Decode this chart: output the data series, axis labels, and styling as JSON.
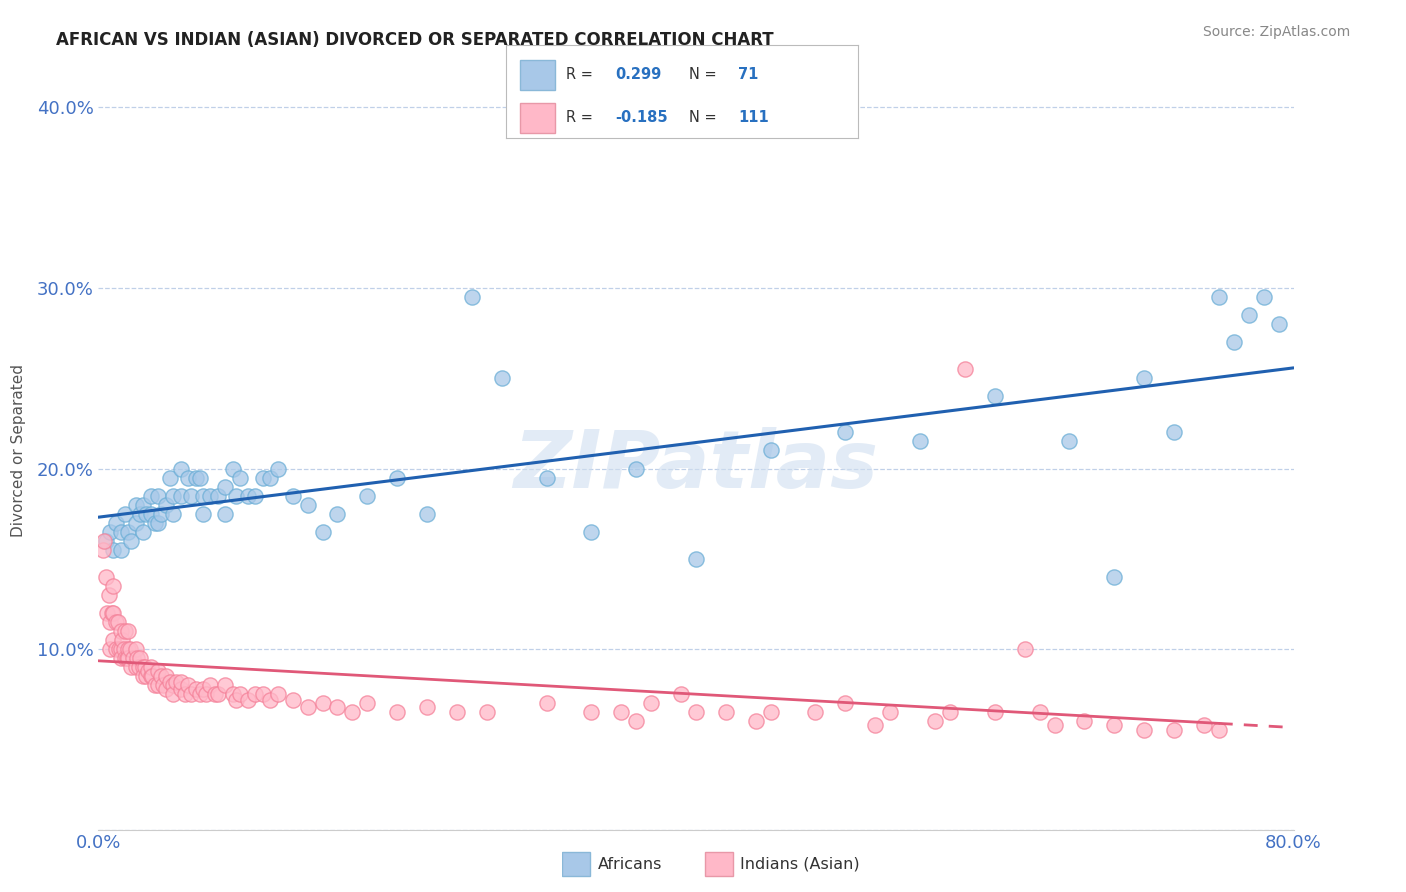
{
  "title": "AFRICAN VS INDIAN (ASIAN) DIVORCED OR SEPARATED CORRELATION CHART",
  "source": "Source: ZipAtlas.com",
  "ylabel": "Divorced or Separated",
  "xlim": [
    0.0,
    0.8
  ],
  "ylim": [
    0.0,
    0.42
  ],
  "xticks": [
    0.0,
    0.1,
    0.2,
    0.3,
    0.4,
    0.5,
    0.6,
    0.7,
    0.8
  ],
  "xticklabels": [
    "0.0%",
    "",
    "",
    "",
    "",
    "",
    "",
    "",
    "80.0%"
  ],
  "yticks": [
    0.0,
    0.1,
    0.2,
    0.3,
    0.4
  ],
  "yticklabels": [
    "",
    "10.0%",
    "20.0%",
    "30.0%",
    "40.0%"
  ],
  "african_R": 0.299,
  "african_N": 71,
  "indian_R": -0.185,
  "indian_N": 111,
  "african_color": "#a8c8e8",
  "african_edge_color": "#6baed6",
  "indian_color": "#ffb8c8",
  "indian_edge_color": "#f48098",
  "african_line_color": "#2060b0",
  "indian_line_color": "#e05878",
  "watermark": "ZIPatlas",
  "background_color": "#ffffff",
  "grid_color": "#c0d0e8",
  "axis_label_color": "#4472c4",
  "legend_border_color": "#c8c8c8",
  "african_legend_color": "#a8c8e8",
  "african_legend_edge": "#8ab8d8",
  "indian_legend_color": "#ffb8c8",
  "indian_legend_edge": "#e898a8",
  "african_x": [
    0.005,
    0.008,
    0.01,
    0.012,
    0.015,
    0.015,
    0.018,
    0.02,
    0.022,
    0.025,
    0.025,
    0.028,
    0.03,
    0.03,
    0.032,
    0.035,
    0.035,
    0.038,
    0.04,
    0.04,
    0.042,
    0.045,
    0.048,
    0.05,
    0.05,
    0.055,
    0.055,
    0.06,
    0.062,
    0.065,
    0.068,
    0.07,
    0.07,
    0.075,
    0.08,
    0.085,
    0.085,
    0.09,
    0.092,
    0.095,
    0.1,
    0.105,
    0.11,
    0.115,
    0.12,
    0.13,
    0.14,
    0.15,
    0.16,
    0.18,
    0.2,
    0.22,
    0.25,
    0.27,
    0.3,
    0.33,
    0.36,
    0.4,
    0.45,
    0.5,
    0.55,
    0.6,
    0.65,
    0.68,
    0.7,
    0.72,
    0.75,
    0.76,
    0.77,
    0.78,
    0.79
  ],
  "african_y": [
    0.16,
    0.165,
    0.155,
    0.17,
    0.165,
    0.155,
    0.175,
    0.165,
    0.16,
    0.17,
    0.18,
    0.175,
    0.18,
    0.165,
    0.175,
    0.185,
    0.175,
    0.17,
    0.185,
    0.17,
    0.175,
    0.18,
    0.195,
    0.185,
    0.175,
    0.2,
    0.185,
    0.195,
    0.185,
    0.195,
    0.195,
    0.185,
    0.175,
    0.185,
    0.185,
    0.175,
    0.19,
    0.2,
    0.185,
    0.195,
    0.185,
    0.185,
    0.195,
    0.195,
    0.2,
    0.185,
    0.18,
    0.165,
    0.175,
    0.185,
    0.195,
    0.175,
    0.295,
    0.25,
    0.195,
    0.165,
    0.2,
    0.15,
    0.21,
    0.22,
    0.215,
    0.24,
    0.215,
    0.14,
    0.25,
    0.22,
    0.295,
    0.27,
    0.285,
    0.295,
    0.28
  ],
  "indian_x": [
    0.003,
    0.004,
    0.005,
    0.006,
    0.007,
    0.008,
    0.008,
    0.009,
    0.01,
    0.01,
    0.01,
    0.012,
    0.012,
    0.013,
    0.014,
    0.015,
    0.015,
    0.015,
    0.016,
    0.017,
    0.018,
    0.018,
    0.019,
    0.02,
    0.02,
    0.02,
    0.021,
    0.022,
    0.023,
    0.025,
    0.025,
    0.026,
    0.027,
    0.028,
    0.03,
    0.03,
    0.031,
    0.032,
    0.033,
    0.035,
    0.035,
    0.036,
    0.038,
    0.04,
    0.04,
    0.042,
    0.043,
    0.045,
    0.045,
    0.048,
    0.05,
    0.05,
    0.052,
    0.055,
    0.055,
    0.058,
    0.06,
    0.062,
    0.065,
    0.068,
    0.07,
    0.072,
    0.075,
    0.078,
    0.08,
    0.085,
    0.09,
    0.092,
    0.095,
    0.1,
    0.105,
    0.11,
    0.115,
    0.12,
    0.13,
    0.14,
    0.15,
    0.16,
    0.17,
    0.18,
    0.2,
    0.22,
    0.24,
    0.26,
    0.3,
    0.33,
    0.36,
    0.4,
    0.44,
    0.48,
    0.52,
    0.56,
    0.6,
    0.62,
    0.63,
    0.64,
    0.66,
    0.68,
    0.7,
    0.72,
    0.74,
    0.75,
    0.35,
    0.37,
    0.39,
    0.42,
    0.45,
    0.5,
    0.53,
    0.57,
    0.58
  ],
  "indian_y": [
    0.155,
    0.16,
    0.14,
    0.12,
    0.13,
    0.115,
    0.1,
    0.12,
    0.135,
    0.12,
    0.105,
    0.115,
    0.1,
    0.115,
    0.1,
    0.11,
    0.1,
    0.095,
    0.105,
    0.1,
    0.095,
    0.11,
    0.095,
    0.1,
    0.11,
    0.095,
    0.1,
    0.09,
    0.095,
    0.1,
    0.09,
    0.095,
    0.09,
    0.095,
    0.09,
    0.085,
    0.09,
    0.085,
    0.088,
    0.085,
    0.09,
    0.085,
    0.08,
    0.088,
    0.08,
    0.085,
    0.08,
    0.085,
    0.078,
    0.082,
    0.08,
    0.075,
    0.082,
    0.078,
    0.082,
    0.075,
    0.08,
    0.075,
    0.078,
    0.075,
    0.078,
    0.075,
    0.08,
    0.075,
    0.075,
    0.08,
    0.075,
    0.072,
    0.075,
    0.072,
    0.075,
    0.075,
    0.072,
    0.075,
    0.072,
    0.068,
    0.07,
    0.068,
    0.065,
    0.07,
    0.065,
    0.068,
    0.065,
    0.065,
    0.07,
    0.065,
    0.06,
    0.065,
    0.06,
    0.065,
    0.058,
    0.06,
    0.065,
    0.1,
    0.065,
    0.058,
    0.06,
    0.058,
    0.055,
    0.055,
    0.058,
    0.055,
    0.065,
    0.07,
    0.075,
    0.065,
    0.065,
    0.07,
    0.065,
    0.065,
    0.255
  ]
}
